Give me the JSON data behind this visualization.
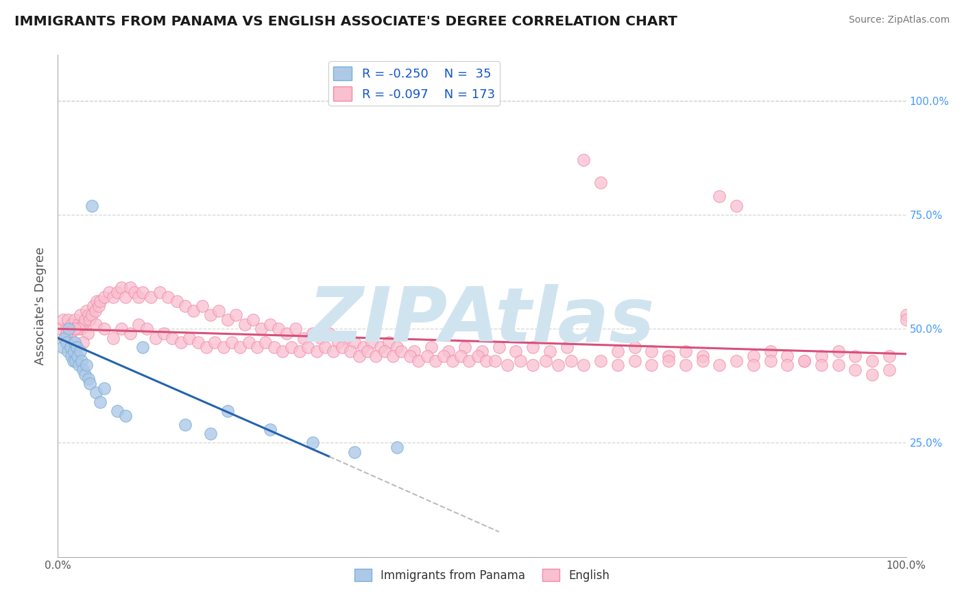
{
  "title": "IMMIGRANTS FROM PANAMA VS ENGLISH ASSOCIATE'S DEGREE CORRELATION CHART",
  "source": "Source: ZipAtlas.com",
  "ylabel": "Associate's Degree",
  "legend_r1": "R = -0.250",
  "legend_n1": "N =  35",
  "legend_r2": "R = -0.097",
  "legend_n2": "N = 173",
  "blue_face": "#aec9e8",
  "blue_edge": "#7aafd4",
  "pink_face": "#f9c0cf",
  "pink_edge": "#f08aaa",
  "trend_blue": "#2563ae",
  "trend_pink": "#d94f7a",
  "trend_dash_color": "#bbbbbb",
  "watermark": "ZIPAtlas",
  "watermark_color": "#d0e4f0",
  "background_color": "#ffffff",
  "grid_color": "#cccccc",
  "title_color": "#1a1a1a",
  "axis_color": "#4499ff",
  "tick_label_color": "#4499ff",
  "xlim": [
    0.0,
    1.0
  ],
  "ylim": [
    0.0,
    1.1
  ],
  "yticks": [
    0.25,
    0.5,
    0.75,
    1.0
  ],
  "ytick_labels": [
    "25.0%",
    "50.0%",
    "75.0%",
    "100.0%"
  ],
  "blue_x": [
    0.005,
    0.008,
    0.01,
    0.012,
    0.013,
    0.015,
    0.016,
    0.018,
    0.019,
    0.02,
    0.021,
    0.022,
    0.023,
    0.025,
    0.026,
    0.028,
    0.03,
    0.032,
    0.034,
    0.036,
    0.038,
    0.04,
    0.045,
    0.05,
    0.055,
    0.07,
    0.08,
    0.1,
    0.15,
    0.18,
    0.2,
    0.25,
    0.3,
    0.35,
    0.4
  ],
  "blue_y": [
    0.46,
    0.48,
    0.47,
    0.45,
    0.5,
    0.46,
    0.44,
    0.43,
    0.45,
    0.47,
    0.43,
    0.46,
    0.44,
    0.42,
    0.45,
    0.43,
    0.41,
    0.4,
    0.42,
    0.39,
    0.38,
    0.77,
    0.36,
    0.34,
    0.37,
    0.32,
    0.31,
    0.46,
    0.29,
    0.27,
    0.32,
    0.28,
    0.25,
    0.23,
    0.24
  ],
  "pink_x": [
    0.004,
    0.006,
    0.008,
    0.01,
    0.012,
    0.014,
    0.016,
    0.018,
    0.02,
    0.022,
    0.024,
    0.026,
    0.028,
    0.03,
    0.032,
    0.034,
    0.036,
    0.038,
    0.04,
    0.042,
    0.044,
    0.046,
    0.048,
    0.05,
    0.055,
    0.06,
    0.065,
    0.07,
    0.075,
    0.08,
    0.085,
    0.09,
    0.095,
    0.1,
    0.11,
    0.12,
    0.13,
    0.14,
    0.15,
    0.16,
    0.17,
    0.18,
    0.19,
    0.2,
    0.21,
    0.22,
    0.23,
    0.24,
    0.25,
    0.26,
    0.27,
    0.28,
    0.29,
    0.3,
    0.31,
    0.32,
    0.33,
    0.34,
    0.35,
    0.36,
    0.37,
    0.38,
    0.39,
    0.4,
    0.42,
    0.44,
    0.46,
    0.48,
    0.5,
    0.52,
    0.54,
    0.56,
    0.58,
    0.6,
    0.62,
    0.64,
    0.66,
    0.68,
    0.7,
    0.72,
    0.74,
    0.76,
    0.78,
    0.8,
    0.82,
    0.84,
    0.86,
    0.88,
    0.9,
    0.92,
    0.94,
    0.96,
    0.98,
    1.0,
    0.015,
    0.025,
    0.035,
    0.045,
    0.055,
    0.065,
    0.075,
    0.085,
    0.095,
    0.105,
    0.115,
    0.125,
    0.135,
    0.145,
    0.155,
    0.165,
    0.175,
    0.185,
    0.195,
    0.205,
    0.215,
    0.225,
    0.235,
    0.245,
    0.255,
    0.265,
    0.275,
    0.285,
    0.295,
    0.305,
    0.315,
    0.325,
    0.335,
    0.345,
    0.355,
    0.365,
    0.375,
    0.385,
    0.395,
    0.405,
    0.415,
    0.425,
    0.435,
    0.445,
    0.455,
    0.465,
    0.475,
    0.485,
    0.495,
    0.505,
    0.515,
    0.53,
    0.545,
    0.56,
    0.575,
    0.59,
    0.605,
    0.62,
    0.64,
    0.66,
    0.68,
    0.7,
    0.72,
    0.74,
    0.76,
    0.78,
    0.8,
    0.82,
    0.84,
    0.86,
    0.88,
    0.9,
    0.92,
    0.94,
    0.96,
    0.98,
    1.0,
    0.01,
    0.02,
    0.03
  ],
  "pink_y": [
    0.5,
    0.52,
    0.48,
    0.5,
    0.52,
    0.49,
    0.51,
    0.5,
    0.52,
    0.5,
    0.51,
    0.53,
    0.5,
    0.51,
    0.52,
    0.54,
    0.53,
    0.52,
    0.53,
    0.55,
    0.54,
    0.56,
    0.55,
    0.56,
    0.57,
    0.58,
    0.57,
    0.58,
    0.59,
    0.57,
    0.59,
    0.58,
    0.57,
    0.58,
    0.57,
    0.58,
    0.57,
    0.56,
    0.55,
    0.54,
    0.55,
    0.53,
    0.54,
    0.52,
    0.53,
    0.51,
    0.52,
    0.5,
    0.51,
    0.5,
    0.49,
    0.5,
    0.48,
    0.49,
    0.48,
    0.49,
    0.47,
    0.48,
    0.47,
    0.46,
    0.47,
    0.46,
    0.47,
    0.46,
    0.45,
    0.46,
    0.45,
    0.46,
    0.45,
    0.46,
    0.45,
    0.46,
    0.45,
    0.46,
    0.87,
    0.82,
    0.45,
    0.46,
    0.45,
    0.44,
    0.45,
    0.44,
    0.79,
    0.77,
    0.44,
    0.45,
    0.44,
    0.43,
    0.44,
    0.45,
    0.44,
    0.43,
    0.44,
    0.53,
    0.48,
    0.5,
    0.49,
    0.51,
    0.5,
    0.48,
    0.5,
    0.49,
    0.51,
    0.5,
    0.48,
    0.49,
    0.48,
    0.47,
    0.48,
    0.47,
    0.46,
    0.47,
    0.46,
    0.47,
    0.46,
    0.47,
    0.46,
    0.47,
    0.46,
    0.45,
    0.46,
    0.45,
    0.46,
    0.45,
    0.46,
    0.45,
    0.46,
    0.45,
    0.44,
    0.45,
    0.44,
    0.45,
    0.44,
    0.45,
    0.44,
    0.43,
    0.44,
    0.43,
    0.44,
    0.43,
    0.44,
    0.43,
    0.44,
    0.43,
    0.43,
    0.42,
    0.43,
    0.42,
    0.43,
    0.42,
    0.43,
    0.42,
    0.43,
    0.42,
    0.43,
    0.42,
    0.43,
    0.42,
    0.43,
    0.42,
    0.43,
    0.42,
    0.43,
    0.42,
    0.43,
    0.42,
    0.42,
    0.41,
    0.4,
    0.41,
    0.52,
    0.49,
    0.5,
    0.47
  ],
  "pink_trend_x0": 0.0,
  "pink_trend_x1": 1.0,
  "pink_trend_y0": 0.5,
  "pink_trend_y1": 0.445,
  "blue_trend_x0": 0.0,
  "blue_trend_y0": 0.48,
  "blue_trend_solid_x1": 0.32,
  "blue_trend_solid_y1": 0.22,
  "blue_trend_dash_x1": 0.52,
  "blue_trend_dash_y1": 0.055
}
